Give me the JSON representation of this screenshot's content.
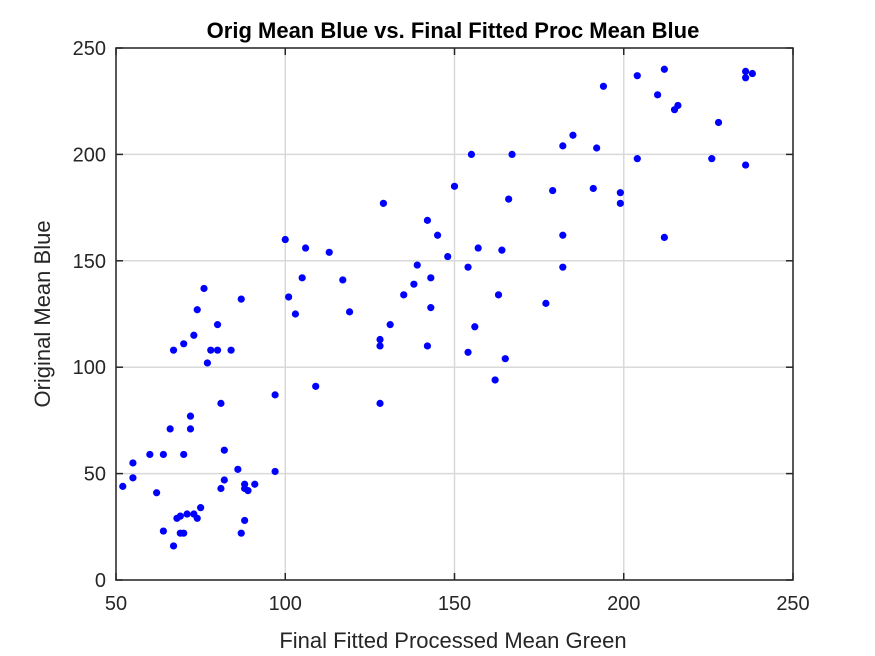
{
  "chart_data": {
    "type": "scatter",
    "title": "Orig Mean Blue vs. Final Fitted Proc Mean Blue",
    "xlabel": "Final Fitted Processed Mean Green",
    "ylabel": "Original Mean Blue",
    "xlim": [
      50,
      250
    ],
    "ylim": [
      0,
      250
    ],
    "xticks": [
      "50",
      "100",
      "150",
      "200",
      "250"
    ],
    "yticks": [
      "0",
      "50",
      "100",
      "150",
      "200",
      "250"
    ],
    "grid": true,
    "marker_color": "#0000ff",
    "x": [
      52,
      55,
      55,
      60,
      62,
      64,
      64,
      66,
      67,
      67,
      68,
      69,
      69,
      70,
      70,
      70,
      71,
      72,
      72,
      73,
      73,
      74,
      74,
      75,
      76,
      77,
      78,
      80,
      80,
      81,
      81,
      82,
      82,
      84,
      86,
      87,
      87,
      88,
      88,
      88,
      89,
      91,
      97,
      97,
      100,
      101,
      103,
      105,
      106,
      109,
      113,
      117,
      119,
      128,
      128,
      128,
      129,
      131,
      135,
      138,
      139,
      142,
      142,
      143,
      143,
      145,
      148,
      150,
      154,
      154,
      155,
      156,
      157,
      162,
      163,
      164,
      165,
      166,
      167,
      177,
      179,
      182,
      182,
      182,
      185,
      191,
      192,
      194,
      199,
      199,
      204,
      204,
      210,
      212,
      212,
      215,
      216,
      226,
      228,
      236,
      236,
      236,
      238
    ],
    "y": [
      44,
      55,
      48,
      59,
      41,
      59,
      23,
      71,
      108,
      16,
      29,
      22,
      30,
      111,
      59,
      22,
      31,
      77,
      71,
      115,
      31,
      127,
      29,
      34,
      137,
      102,
      108,
      120,
      108,
      43,
      83,
      61,
      47,
      108,
      52,
      132,
      22,
      45,
      43,
      28,
      42,
      45,
      51,
      87,
      160,
      133,
      125,
      142,
      156,
      91,
      154,
      141,
      126,
      113,
      110,
      83,
      177,
      120,
      134,
      139,
      148,
      169,
      110,
      128,
      142,
      162,
      152,
      185,
      107,
      147,
      200,
      119,
      156,
      94,
      134,
      155,
      104,
      179,
      200,
      130,
      183,
      204,
      147,
      162,
      209,
      184,
      203,
      232,
      177,
      182,
      198,
      237,
      228,
      240,
      161,
      221,
      223,
      198,
      215,
      195,
      236,
      239,
      238
    ]
  }
}
